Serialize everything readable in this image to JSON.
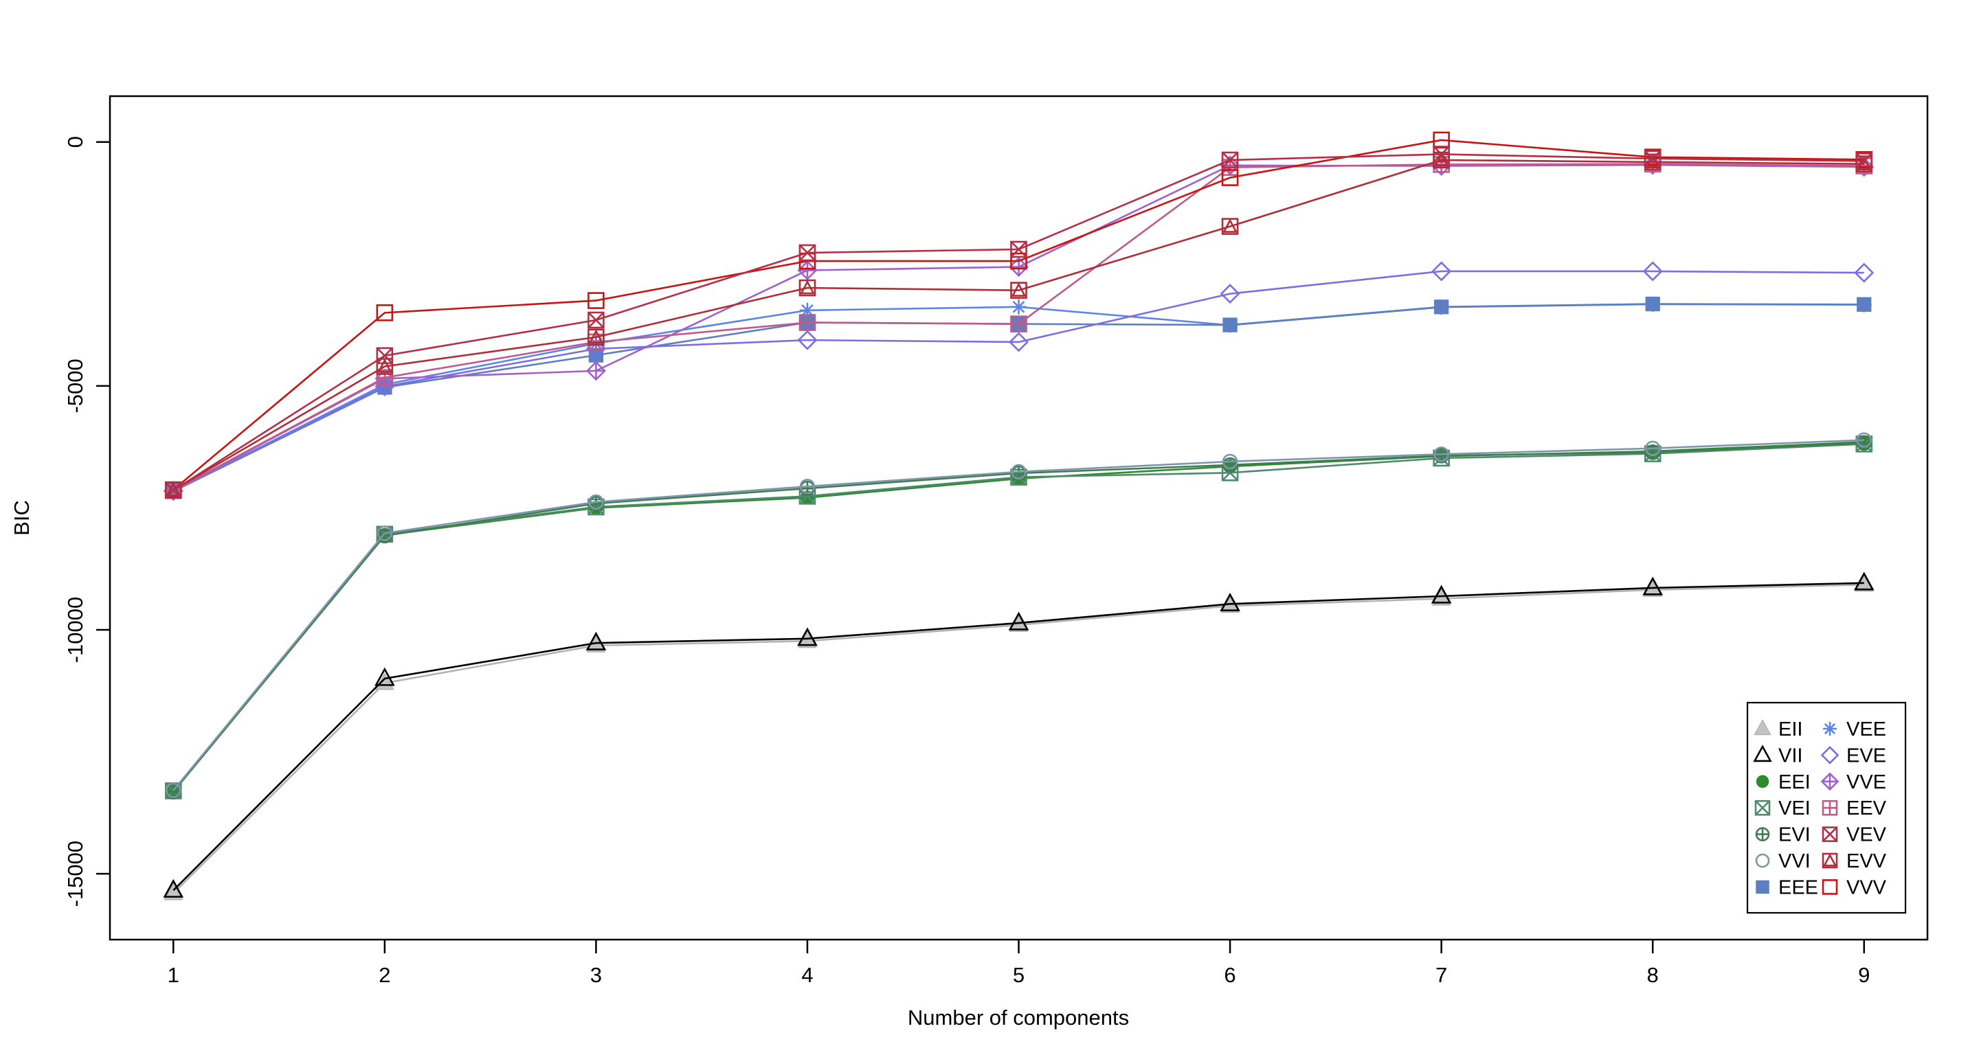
{
  "chart_data": {
    "type": "line",
    "title": "",
    "xlabel": "Number of components",
    "ylabel": "BIC",
    "grid": false,
    "legend_position": "bottom-right",
    "x": [
      1,
      2,
      3,
      4,
      5,
      6,
      7,
      8,
      9
    ],
    "x_tick_labels": [
      "1",
      "2",
      "3",
      "4",
      "5",
      "6",
      "7",
      "8",
      "9"
    ],
    "y_ticks": [
      {
        "value": 0,
        "label": "0"
      },
      {
        "value": -5000,
        "label": "-5000"
      },
      {
        "value": -10000,
        "label": "-10000"
      },
      {
        "value": -15000,
        "label": "-15000"
      }
    ],
    "ylim": [
      -16350,
      940
    ],
    "xlim": [
      0.7,
      9.3
    ],
    "legend_columns": [
      [
        "EII",
        "VII",
        "EEI",
        "VEI",
        "EVI",
        "VVI",
        "EEE"
      ],
      [
        "VEE",
        "EVE",
        "VVE",
        "EEV",
        "VEV",
        "EVV",
        "VVV"
      ]
    ],
    "series": [
      {
        "name": "EII",
        "marker": "triangle-filled",
        "color": "#b3b3b3",
        "fill": "#c3c3c3",
        "values": [
          -15400,
          -11090,
          -10320,
          -10230,
          -9900,
          -9510,
          -9360,
          -9180,
          -9075
        ]
      },
      {
        "name": "VII",
        "marker": "triangle-open",
        "color": "#000000",
        "fill": "none",
        "values": [
          -15340,
          -11000,
          -10270,
          -10180,
          -9860,
          -9470,
          -9310,
          -9140,
          -9040
        ]
      },
      {
        "name": "EEI",
        "marker": "circle-filled",
        "color": "#2e8b2e",
        "fill": "#2e8b2e",
        "values": [
          -13310,
          -8060,
          -7500,
          -7290,
          -6900,
          -6650,
          -6440,
          -6340,
          -6150
        ]
      },
      {
        "name": "VEI",
        "marker": "square-x",
        "color": "#4e8a6e",
        "fill": "none",
        "values": [
          -13300,
          -8040,
          -7480,
          -7260,
          -6870,
          -6780,
          -6480,
          -6390,
          -6190
        ]
      },
      {
        "name": "EVI",
        "marker": "circle-plus",
        "color": "#3f7d4f",
        "fill": "none",
        "values": [
          -13320,
          -8070,
          -7410,
          -7100,
          -6790,
          -6620,
          -6430,
          -6360,
          -6170
        ]
      },
      {
        "name": "VVI",
        "marker": "circle-open",
        "color": "#7d96ad",
        "fill": "none",
        "values": [
          -13290,
          -8020,
          -7380,
          -7060,
          -6760,
          -6550,
          -6400,
          -6280,
          -6110
        ]
      },
      {
        "name": "VEE",
        "marker": "asterisk",
        "color": "#5c85e8",
        "fill": "none",
        "values": [
          -7150,
          -4970,
          -4130,
          -3450,
          -3380,
          -3755,
          -3385,
          -3325,
          -3335
        ]
      },
      {
        "name": "EEE",
        "marker": "square-filled",
        "color": "#5c7fc4",
        "fill": "#5c7fc4",
        "values": [
          -7160,
          -5030,
          -4370,
          -3700,
          -3730,
          -3750,
          -3380,
          -3320,
          -3330
        ]
      },
      {
        "name": "EVE",
        "marker": "diamond-open",
        "color": "#7a6ee6",
        "fill": "none",
        "values": [
          -7155,
          -5010,
          -4240,
          -4060,
          -4100,
          -3110,
          -2650,
          -2650,
          -2680
        ]
      },
      {
        "name": "VVE",
        "marker": "diamond-plus",
        "color": "#a061cc",
        "fill": "none",
        "values": [
          -7150,
          -4850,
          -4690,
          -2630,
          -2560,
          -480,
          -490,
          -470,
          -510
        ]
      },
      {
        "name": "EEV",
        "marker": "square-plus",
        "color": "#c05a8a",
        "fill": "none",
        "values": [
          -7145,
          -4830,
          -4100,
          -3700,
          -3730,
          -520,
          -460,
          -450,
          -490
        ]
      },
      {
        "name": "EVV",
        "marker": "square-triangle",
        "color": "#b02c38",
        "fill": "none",
        "values": [
          -7135,
          -4600,
          -4000,
          -2990,
          -3040,
          -1730,
          -370,
          -410,
          -450
        ]
      },
      {
        "name": "VVV",
        "marker": "square-open",
        "color": "#cc1111",
        "fill": "none",
        "values": [
          -7130,
          -3500,
          -3250,
          -2440,
          -2440,
          -730,
          40,
          -310,
          -360
        ]
      },
      {
        "name": "VEV",
        "marker": "square-x",
        "color": "#b52e44",
        "fill": "none",
        "values": [
          -7140,
          -4380,
          -3650,
          -2270,
          -2200,
          -370,
          -250,
          -340,
          -390
        ]
      }
    ]
  }
}
